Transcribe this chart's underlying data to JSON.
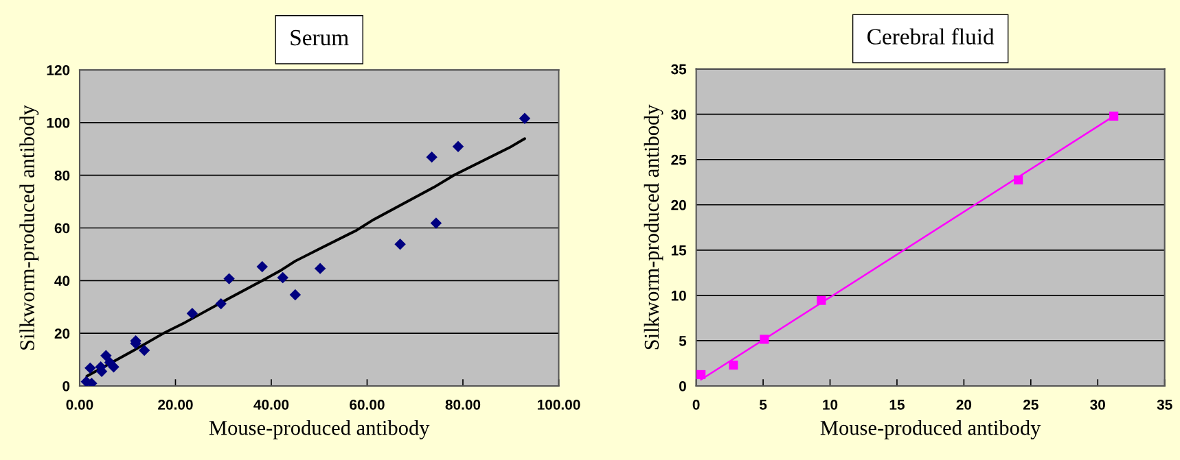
{
  "chart_data": [
    {
      "type": "scatter",
      "title": "Serum",
      "xlabel": "Mouse-produced antibody",
      "ylabel": "Silkworm-produced antibody",
      "xlim": [
        0,
        100
      ],
      "xticks": [
        {
          "value": 0,
          "label": "0.00"
        },
        {
          "value": 20,
          "label": "20.00"
        },
        {
          "value": 40,
          "label": "40.00"
        },
        {
          "value": 60,
          "label": "60.00"
        },
        {
          "value": 80,
          "label": "80.00"
        },
        {
          "value": 100,
          "label": "100.00"
        }
      ],
      "ylim": [
        0,
        120
      ],
      "yticks": [
        0,
        20,
        40,
        60,
        80,
        100,
        120
      ],
      "grid": "y",
      "series": [
        {
          "color": "#000080",
          "marker": "diamond",
          "x": [
            1.4,
            2.5,
            2.2,
            4.4,
            4.6,
            5.5,
            6.3,
            7.1,
            11.7,
            11.7,
            13.5,
            23.5,
            29.5,
            31.2,
            38.1,
            42.4,
            45.0,
            50.2,
            66.9,
            74.4,
            73.5,
            79.0,
            92.9
          ],
          "values": [
            1.6,
            1.0,
            6.8,
            7.2,
            5.5,
            11.5,
            8.9,
            7.2,
            17.1,
            16.1,
            13.5,
            27.5,
            31.2,
            40.7,
            45.3,
            41.1,
            34.6,
            44.6,
            53.8,
            61.8,
            86.9,
            90.9,
            101.6
          ]
        },
        {
          "type": "line",
          "color": "#000000",
          "line_style": "solid",
          "x": [
            1.5,
            11,
            17.7,
            22.0,
            26.3,
            31.1,
            38.2,
            42.1,
            45,
            50.2,
            57.8,
            61.4,
            73.9,
            78.2,
            89.7,
            92.9
          ],
          "values": [
            3.7,
            13.2,
            20.2,
            24.1,
            28.4,
            33.2,
            40.1,
            44,
            47.4,
            52.2,
            59.1,
            63.2,
            75.4,
            80.1,
            90.5,
            93.9
          ]
        }
      ]
    },
    {
      "type": "scatter",
      "title": "Cerebral fluid",
      "xlabel": "Mouse-produced antibody",
      "ylabel": "Silkworm-produced antibody",
      "xlim": [
        0,
        35
      ],
      "xticks": [
        0,
        5,
        10,
        15,
        20,
        25,
        30,
        35
      ],
      "ylim": [
        0,
        35
      ],
      "yticks": [
        0,
        5,
        10,
        15,
        20,
        25,
        30,
        35
      ],
      "grid": "y",
      "series": [
        {
          "color": "#ff00ff",
          "marker": "square",
          "x": [
            0.36,
            2.78,
            5.09,
            9.35,
            24.07,
            31.2
          ],
          "values": [
            1.25,
            2.3,
            5.15,
            9.45,
            22.75,
            29.8
          ]
        },
        {
          "type": "line",
          "color": "#ff00ff",
          "line_style": "solid",
          "x": [
            0.36,
            31.2
          ],
          "values": [
            0.7,
            29.8
          ]
        }
      ]
    }
  ]
}
